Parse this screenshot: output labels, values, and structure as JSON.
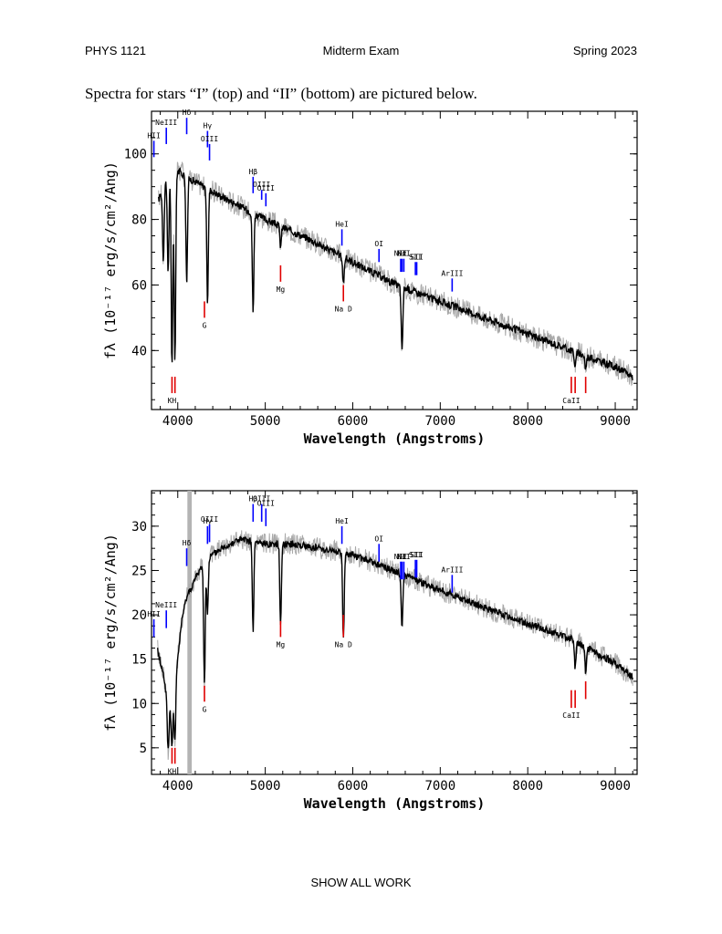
{
  "header": {
    "course": "PHYS 1121",
    "title": "Midterm Exam",
    "term": "Spring 2023"
  },
  "intro": "Spectra for stars “I” (top) and “II” (bottom) are pictured below.",
  "footer": "SHOW ALL WORK",
  "chart_data": [
    {
      "type": "line",
      "xlabel": "Wavelength (Angstroms)",
      "ylabel": "fλ (10⁻¹⁷ erg/s/cm²/Ang)",
      "xlim": [
        3700,
        9250
      ],
      "ylim": [
        22,
        113
      ],
      "xticks": [
        4000,
        5000,
        6000,
        7000,
        8000,
        9000
      ],
      "yticks": [
        40,
        60,
        80,
        100
      ],
      "continuum": [
        [
          3780,
          86
        ],
        [
          3840,
          90
        ],
        [
          3900,
          94
        ],
        [
          4000,
          95
        ],
        [
          4100,
          93
        ],
        [
          4300,
          90
        ],
        [
          4500,
          87
        ],
        [
          5000,
          80
        ],
        [
          5500,
          74
        ],
        [
          6000,
          67
        ],
        [
          6500,
          60
        ],
        [
          7000,
          55
        ],
        [
          7500,
          50
        ],
        [
          8000,
          45
        ],
        [
          8500,
          40
        ],
        [
          9000,
          35
        ],
        [
          9200,
          32
        ]
      ],
      "absorption_lines": [
        {
          "x": 3835,
          "depth": 22
        },
        {
          "x": 3890,
          "depth": 30
        },
        {
          "x": 3934,
          "depth": 60
        },
        {
          "x": 3968,
          "depth": 58
        },
        {
          "x": 4102,
          "depth": 32
        },
        {
          "x": 4340,
          "depth": 35
        },
        {
          "x": 4861,
          "depth": 30
        },
        {
          "x": 5175,
          "depth": 6
        },
        {
          "x": 5893,
          "depth": 8
        },
        {
          "x": 6563,
          "depth": 20
        },
        {
          "x": 8542,
          "depth": 5
        },
        {
          "x": 8662,
          "depth": 4
        }
      ],
      "lines_blue": [
        {
          "label": "NeIII",
          "x": 3869,
          "y1": 103,
          "y2": 108
        },
        {
          "label": "HII",
          "x": 3727,
          "y1": 99,
          "y2": 104
        },
        {
          "label": "Hδ",
          "x": 4102,
          "y1": 106,
          "y2": 111
        },
        {
          "label": "Hγ",
          "x": 4340,
          "y1": 102,
          "y2": 107
        },
        {
          "label": "OIII",
          "x": 4363,
          "y1": 98,
          "y2": 103
        },
        {
          "label": "Hβ",
          "x": 4861,
          "y1": 88,
          "y2": 93
        },
        {
          "label": "OIII",
          "x": 4959,
          "y1": 86,
          "y2": 89
        },
        {
          "label": "OIII",
          "x": 5007,
          "y1": 84,
          "y2": 88
        },
        {
          "label": "HeI",
          "x": 5876,
          "y1": 72,
          "y2": 77
        },
        {
          "label": "OI",
          "x": 6300,
          "y1": 67,
          "y2": 71
        },
        {
          "label": "NII",
          "x": 6548,
          "y1": 64,
          "y2": 68
        },
        {
          "label": "Hα",
          "x": 6563,
          "y1": 64,
          "y2": 68
        },
        {
          "label": "NII",
          "x": 6584,
          "y1": 64,
          "y2": 68
        },
        {
          "label": "SII",
          "x": 6716,
          "y1": 63,
          "y2": 67
        },
        {
          "label": "SII",
          "x": 6731,
          "y1": 63,
          "y2": 67
        },
        {
          "label": "ArIII",
          "x": 7136,
          "y1": 58,
          "y2": 62
        }
      ],
      "lines_red": [
        {
          "label": "KH",
          "x": 3934,
          "y1": 27,
          "y2": 32
        },
        {
          "label": "",
          "x": 3968,
          "y1": 27,
          "y2": 32
        },
        {
          "label": "G",
          "x": 4305,
          "y1": 50,
          "y2": 55
        },
        {
          "label": "Mg",
          "x": 5175,
          "y1": 61,
          "y2": 66
        },
        {
          "label": "Na D",
          "x": 5893,
          "y1": 55,
          "y2": 60
        },
        {
          "label": "CaII",
          "x": 8498,
          "y1": 27,
          "y2": 32
        },
        {
          "label": "",
          "x": 8542,
          "y1": 27,
          "y2": 32
        },
        {
          "label": "",
          "x": 8662,
          "y1": 27,
          "y2": 32
        }
      ],
      "label_offsets": {
        "KH": "below",
        "G": "below",
        "Mg": "below",
        "Na D": "below",
        "CaII": "below"
      }
    },
    {
      "type": "line",
      "xlabel": "Wavelength (Angstroms)",
      "ylabel": "fλ (10⁻¹⁷ erg/s/cm²/Ang)",
      "xlim": [
        3700,
        9250
      ],
      "ylim": [
        2,
        34
      ],
      "xticks": [
        4000,
        5000,
        6000,
        7000,
        8000,
        9000
      ],
      "yticks": [
        5,
        10,
        15,
        20,
        25,
        30
      ],
      "gap_band": [
        4110,
        4160
      ],
      "continuum": [
        [
          3770,
          16
        ],
        [
          3840,
          13
        ],
        [
          3900,
          9
        ],
        [
          3960,
          11
        ],
        [
          4040,
          19
        ],
        [
          4100,
          22
        ],
        [
          4200,
          24
        ],
        [
          4300,
          26
        ],
        [
          4500,
          27.5
        ],
        [
          4700,
          28.5
        ],
        [
          5000,
          28
        ],
        [
          5300,
          28
        ],
        [
          5500,
          27.7
        ],
        [
          6000,
          26.8
        ],
        [
          6500,
          24.8
        ],
        [
          7000,
          22.8
        ],
        [
          7500,
          20.8
        ],
        [
          8000,
          19
        ],
        [
          8500,
          17.3
        ],
        [
          9000,
          14.5
        ],
        [
          9200,
          13
        ]
      ],
      "absorption_lines": [
        {
          "x": 3890,
          "depth": 5
        },
        {
          "x": 3934,
          "depth": 5
        },
        {
          "x": 3968,
          "depth": 6
        },
        {
          "x": 4305,
          "depth": 14
        },
        {
          "x": 4340,
          "depth": 6
        },
        {
          "x": 4861,
          "depth": 10
        },
        {
          "x": 5175,
          "depth": 9
        },
        {
          "x": 5893,
          "depth": 10
        },
        {
          "x": 6563,
          "depth": 6
        },
        {
          "x": 8542,
          "depth": 3
        },
        {
          "x": 8662,
          "depth": 3
        }
      ],
      "lines_blue": [
        {
          "label": "NeIII",
          "x": 3869,
          "y1": 18.5,
          "y2": 20.5
        },
        {
          "label": "HII",
          "x": 3727,
          "y1": 17.5,
          "y2": 19.5
        },
        {
          "label": "Hδ",
          "x": 4102,
          "y1": 25.5,
          "y2": 27.5
        },
        {
          "label": "Hγ",
          "x": 4340,
          "y1": 28,
          "y2": 30
        },
        {
          "label": "OIII",
          "x": 4363,
          "y1": 28.2,
          "y2": 30.2
        },
        {
          "label": "Hβ",
          "x": 4861,
          "y1": 30.5,
          "y2": 32.5
        },
        {
          "label": "OIII",
          "x": 4959,
          "y1": 30.5,
          "y2": 32.5
        },
        {
          "label": "OIII",
          "x": 5007,
          "y1": 30,
          "y2": 32
        },
        {
          "label": "HeI",
          "x": 5876,
          "y1": 28,
          "y2": 30
        },
        {
          "label": "OI",
          "x": 6300,
          "y1": 26,
          "y2": 28
        },
        {
          "label": "NII",
          "x": 6548,
          "y1": 24,
          "y2": 26
        },
        {
          "label": "Hα",
          "x": 6563,
          "y1": 24,
          "y2": 26
        },
        {
          "label": "NII",
          "x": 6584,
          "y1": 24,
          "y2": 26
        },
        {
          "label": "SII",
          "x": 6716,
          "y1": 24.2,
          "y2": 26.2
        },
        {
          "label": "SII",
          "x": 6731,
          "y1": 24.2,
          "y2": 26.2
        },
        {
          "label": "ArIII",
          "x": 7136,
          "y1": 22.5,
          "y2": 24.5
        }
      ],
      "lines_red": [
        {
          "label": "KH",
          "x": 3934,
          "y1": 3.2,
          "y2": 5
        },
        {
          "label": "",
          "x": 3968,
          "y1": 3.2,
          "y2": 5
        },
        {
          "label": "G",
          "x": 4305,
          "y1": 10.2,
          "y2": 12
        },
        {
          "label": "Mg",
          "x": 5175,
          "y1": 17.5,
          "y2": 19.3
        },
        {
          "label": "Na D",
          "x": 5893,
          "y1": 17.5,
          "y2": 20
        },
        {
          "label": "CaII",
          "x": 8498,
          "y1": 9.5,
          "y2": 11.5
        },
        {
          "label": "",
          "x": 8542,
          "y1": 9.5,
          "y2": 11.5
        },
        {
          "label": "",
          "x": 8662,
          "y1": 10.5,
          "y2": 12.5
        }
      ]
    }
  ]
}
